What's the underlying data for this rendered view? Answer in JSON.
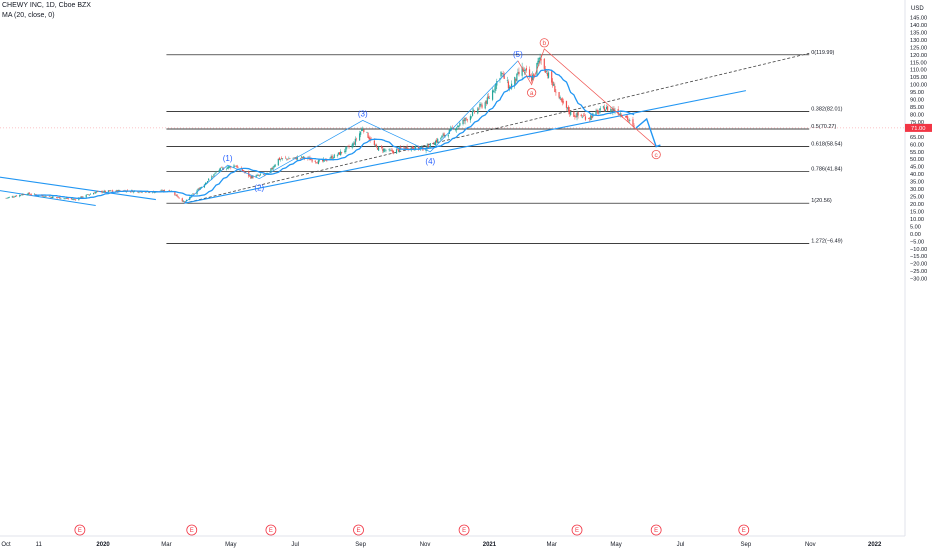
{
  "header": {
    "symbol_line": "CHEWY INC, 1D, Cboe BZX",
    "indicator_line": "MA (20, close, 0)"
  },
  "colors": {
    "up": "#26a69a",
    "down": "#ef5350",
    "ma": "#2196f3",
    "wave": "#2962ff",
    "fib": "#000000",
    "price_tag": "#f23645",
    "event": "#f23645"
  },
  "chart_data": {
    "type": "line",
    "title": "CHEWY INC, 1D, Cboe BZX",
    "currency": "USD",
    "ylim": [
      -32,
      145
    ],
    "y_ticks": [
      145,
      140,
      135,
      130,
      125,
      120,
      115,
      110,
      105,
      100,
      95,
      90,
      85,
      80,
      75,
      70,
      65,
      60,
      55,
      50,
      45,
      40,
      35,
      30,
      25,
      20,
      15,
      10,
      5,
      0,
      -5,
      -10,
      -15,
      -20,
      -25,
      -30
    ],
    "y_tick_labels": [
      "145.00",
      "140.00",
      "135.00",
      "130.00",
      "125.00",
      "120.00",
      "115.00",
      "110.00",
      "105.00",
      "100.00",
      "95.00",
      "90.00",
      "85.00",
      "80.00",
      "75.00",
      "70.00",
      "65.00",
      "60.00",
      "55.00",
      "50.00",
      "45.00",
      "40.00",
      "35.00",
      "30.00",
      "25.00",
      "20.00",
      "15.00",
      "10.00",
      "5.00",
      "0.00",
      "−5.00",
      "−10.00",
      "−15.00",
      "−20.00",
      "−25.00",
      "−30.00"
    ],
    "x_axis": {
      "start": "2019-10-01",
      "end": "2022-01-25",
      "labels": [
        {
          "date": "2019-10-01",
          "text": "Oct",
          "bold": false
        },
        {
          "date": "2019-11-01",
          "text": "11",
          "bold": false
        },
        {
          "date": "2020-01-01",
          "text": "2020",
          "bold": true
        },
        {
          "date": "2020-03-01",
          "text": "Mar",
          "bold": false
        },
        {
          "date": "2020-05-01",
          "text": "May",
          "bold": false
        },
        {
          "date": "2020-07-01",
          "text": "Jul",
          "bold": false
        },
        {
          "date": "2020-09-01",
          "text": "Sep",
          "bold": false
        },
        {
          "date": "2020-11-01",
          "text": "Nov",
          "bold": false
        },
        {
          "date": "2021-01-01",
          "text": "2021",
          "bold": true
        },
        {
          "date": "2021-03-01",
          "text": "Mar",
          "bold": false
        },
        {
          "date": "2021-05-01",
          "text": "May",
          "bold": false
        },
        {
          "date": "2021-07-01",
          "text": "Jul",
          "bold": false
        },
        {
          "date": "2021-09-01",
          "text": "Sep",
          "bold": false
        },
        {
          "date": "2021-11-01",
          "text": "Nov",
          "bold": false
        },
        {
          "date": "2022-01-01",
          "text": "2022",
          "bold": true
        }
      ]
    },
    "price_key_points": [
      {
        "date": "2019-10-01",
        "close": 24
      },
      {
        "date": "2019-10-20",
        "close": 27
      },
      {
        "date": "2019-11-10",
        "close": 25
      },
      {
        "date": "2019-12-05",
        "close": 23
      },
      {
        "date": "2019-12-25",
        "close": 28
      },
      {
        "date": "2020-01-20",
        "close": 29
      },
      {
        "date": "2020-02-15",
        "close": 28
      },
      {
        "date": "2020-03-05",
        "close": 29
      },
      {
        "date": "2020-03-18",
        "close": 21
      },
      {
        "date": "2020-04-05",
        "close": 33
      },
      {
        "date": "2020-04-20",
        "close": 43
      },
      {
        "date": "2020-05-05",
        "close": 46
      },
      {
        "date": "2020-05-20",
        "close": 38
      },
      {
        "date": "2020-06-05",
        "close": 40
      },
      {
        "date": "2020-06-15",
        "close": 50
      },
      {
        "date": "2020-07-10",
        "close": 51
      },
      {
        "date": "2020-07-25",
        "close": 48
      },
      {
        "date": "2020-08-10",
        "close": 53
      },
      {
        "date": "2020-08-25",
        "close": 60
      },
      {
        "date": "2020-09-03",
        "close": 71
      },
      {
        "date": "2020-09-15",
        "close": 58
      },
      {
        "date": "2020-09-30",
        "close": 55
      },
      {
        "date": "2020-10-15",
        "close": 58
      },
      {
        "date": "2020-11-01",
        "close": 57
      },
      {
        "date": "2020-11-15",
        "close": 64
      },
      {
        "date": "2020-12-01",
        "close": 72
      },
      {
        "date": "2020-12-15",
        "close": 80
      },
      {
        "date": "2020-12-31",
        "close": 90
      },
      {
        "date": "2021-01-12",
        "close": 108
      },
      {
        "date": "2021-01-20",
        "close": 98
      },
      {
        "date": "2021-02-01",
        "close": 110
      },
      {
        "date": "2021-02-10",
        "close": 104
      },
      {
        "date": "2021-02-18",
        "close": 118
      },
      {
        "date": "2021-02-28",
        "close": 103
      },
      {
        "date": "2021-03-10",
        "close": 88
      },
      {
        "date": "2021-03-20",
        "close": 80
      },
      {
        "date": "2021-04-05",
        "close": 78
      },
      {
        "date": "2021-04-20",
        "close": 84
      },
      {
        "date": "2021-04-30",
        "close": 83
      },
      {
        "date": "2021-05-10",
        "close": 79
      },
      {
        "date": "2021-05-18",
        "close": 71
      }
    ],
    "fib_levels": [
      {
        "ratio": "0",
        "value": 119.99,
        "label": "0(119.99)"
      },
      {
        "ratio": "0.382",
        "value": 82.01,
        "label": "0.382(82.01)"
      },
      {
        "ratio": "0.5",
        "value": 70.27,
        "label": "0.5(70.27)"
      },
      {
        "ratio": "0.618",
        "value": 58.54,
        "label": "0.618(58.54)"
      },
      {
        "ratio": "0.786",
        "value": 41.84,
        "label": "0.786(41.84)"
      },
      {
        "ratio": "1",
        "value": 20.56,
        "label": "1(20.56)"
      },
      {
        "ratio": "1.272",
        "value": -6.49,
        "label": "1.272(−6.49)"
      }
    ],
    "fib_range": {
      "start": "2020-03-01",
      "end": "2021-10-31"
    },
    "current_price": {
      "value": 71.0,
      "label": "71.00"
    },
    "elliott_impulse": [
      {
        "label": "",
        "date": "2020-03-18",
        "value": 20.56
      },
      {
        "label": "(1)",
        "date": "2020-04-28",
        "value": 46
      },
      {
        "label": "(2)",
        "date": "2020-05-28",
        "value": 37
      },
      {
        "label": "(3)",
        "date": "2020-09-03",
        "value": 76
      },
      {
        "label": "(4)",
        "date": "2020-11-06",
        "value": 55
      },
      {
        "label": "(5)",
        "date": "2021-01-28",
        "value": 116
      }
    ],
    "abc_correction": [
      {
        "label": "",
        "date": "2021-01-28",
        "value": 116
      },
      {
        "label": "a",
        "date": "2021-02-10",
        "value": 100
      },
      {
        "label": "b",
        "date": "2021-02-22",
        "value": 124
      },
      {
        "label": "c",
        "date": "2021-06-08",
        "value": 58.5
      }
    ],
    "projection": [
      {
        "date": "2021-05-20",
        "value": 71
      },
      {
        "date": "2021-05-30",
        "value": 77
      },
      {
        "date": "2021-06-08",
        "value": 58.5
      },
      {
        "date": "2021-06-12",
        "value": 59.5
      }
    ],
    "trendlines": [
      {
        "style": "dashed",
        "from": {
          "date": "2020-03-18",
          "value": 20.56
        },
        "to": {
          "date": "2021-10-31",
          "value": 121
        }
      },
      {
        "style": "solid",
        "from": {
          "date": "2020-03-18",
          "value": 20.56
        },
        "to": {
          "date": "2021-09-01",
          "value": 96
        }
      },
      {
        "style": "solid",
        "from": {
          "date": "2019-09-25",
          "value": 38
        },
        "to": {
          "date": "2020-02-20",
          "value": 23
        }
      },
      {
        "style": "solid",
        "from": {
          "date": "2019-09-25",
          "value": 29
        },
        "to": {
          "date": "2019-12-25",
          "value": 19
        }
      }
    ],
    "earnings_events": [
      "2019-12-10",
      "2020-03-25",
      "2020-06-08",
      "2020-08-30",
      "2020-12-08",
      "2021-03-25",
      "2021-06-08",
      "2021-08-30"
    ],
    "earnings_label": "E",
    "ma_label": "MA (20, close, 0)",
    "grid": false
  }
}
